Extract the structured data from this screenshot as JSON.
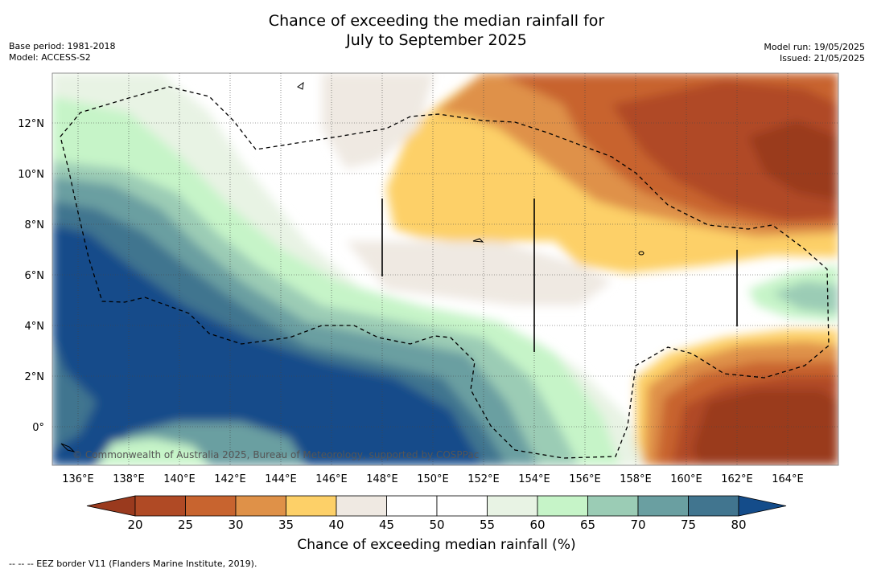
{
  "header": {
    "title_line1": "Chance of exceeding the median rainfall for",
    "title_line2": "July to September 2025",
    "base_period": "Base period: 1981-2018",
    "model": "Model: ACCESS-S2",
    "model_run": "Model run: 19/05/2025",
    "issued": "Issued: 21/05/2025"
  },
  "map": {
    "lon_ticks": [
      "136°E",
      "138°E",
      "140°E",
      "142°E",
      "144°E",
      "146°E",
      "148°E",
      "150°E",
      "152°E",
      "154°E",
      "156°E",
      "158°E",
      "160°E",
      "162°E",
      "164°E"
    ],
    "lat_ticks": [
      "12°N",
      "10°N",
      "8°N",
      "6°N",
      "4°N",
      "2°N",
      "0°"
    ],
    "copyright": "© Commonwealth of Australia 2025, Bureau of Meteorology, supported by COSPPac"
  },
  "colorbar": {
    "title": "Chance of exceeding median rainfall (%)",
    "ticks": [
      "20",
      "25",
      "30",
      "35",
      "40",
      "45",
      "50",
      "55",
      "60",
      "65",
      "70",
      "75",
      "80"
    ],
    "colors": [
      "#9a3a1e",
      "#b04a25",
      "#c8642f",
      "#df9148",
      "#fdd068",
      "#efe9e2",
      "#ffffff",
      "#ffffff",
      "#e8f3e4",
      "#c6f4c8",
      "#9bccb5",
      "#6a9fa1",
      "#41758f",
      "#144c8a"
    ]
  },
  "footnote": "--  --  -- EEZ border V11 (Flanders Marine Institute, 2019)."
}
